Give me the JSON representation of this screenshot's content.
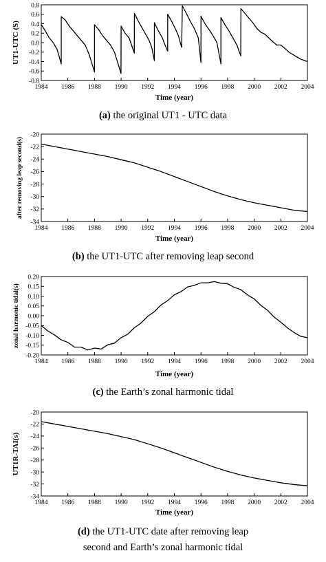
{
  "chart_data": [
    {
      "type": "line",
      "panel_label": "(a)",
      "caption": "the original UT1 - UTC data",
      "caption_line2": "",
      "ylabel": "UT1-UTC (S)",
      "xlabel": "Time (year)",
      "xlim": [
        1984,
        2004
      ],
      "ylim": [
        -0.8,
        0.8
      ],
      "xticks": [
        1984,
        1986,
        1988,
        1990,
        1992,
        1994,
        1996,
        1998,
        2000,
        2002,
        2004
      ],
      "yticks": [
        -0.8,
        -0.6,
        -0.4,
        -0.2,
        0.0,
        0.2,
        0.4,
        0.6,
        0.8
      ],
      "ytick_labels": [
        "-0.8",
        "-0.6",
        "-0.4",
        "-0.2",
        "0.0",
        "0.2",
        "0.4",
        "0.6",
        "0.8"
      ],
      "series": [
        {
          "points": [
            [
              1984.0,
              0.38
            ],
            [
              1984.3,
              0.25
            ],
            [
              1984.6,
              0.1
            ],
            [
              1984.9,
              0.0
            ],
            [
              1985.2,
              -0.15
            ],
            [
              1985.5,
              -0.45
            ],
            [
              1985.5,
              0.55
            ],
            [
              1985.8,
              0.48
            ],
            [
              1986.1,
              0.35
            ],
            [
              1986.4,
              0.25
            ],
            [
              1986.7,
              0.15
            ],
            [
              1987.0,
              0.05
            ],
            [
              1987.3,
              -0.05
            ],
            [
              1987.6,
              -0.25
            ],
            [
              1988.0,
              -0.62
            ],
            [
              1988.0,
              0.38
            ],
            [
              1988.3,
              0.28
            ],
            [
              1988.6,
              0.15
            ],
            [
              1988.9,
              0.05
            ],
            [
              1989.2,
              -0.05
            ],
            [
              1989.5,
              -0.2
            ],
            [
              1989.99,
              -0.65
            ],
            [
              1990.0,
              0.35
            ],
            [
              1990.3,
              0.2
            ],
            [
              1990.6,
              0.1
            ],
            [
              1990.99,
              -0.22
            ],
            [
              1991.0,
              0.62
            ],
            [
              1991.3,
              0.45
            ],
            [
              1991.6,
              0.3
            ],
            [
              1991.9,
              0.15
            ],
            [
              1992.1,
              0.05
            ],
            [
              1992.3,
              -0.1
            ],
            [
              1992.5,
              -0.38
            ],
            [
              1992.5,
              0.42
            ],
            [
              1992.8,
              0.25
            ],
            [
              1993.1,
              0.1
            ],
            [
              1993.3,
              -0.05
            ],
            [
              1993.5,
              -0.18
            ],
            [
              1993.5,
              0.6
            ],
            [
              1993.8,
              0.45
            ],
            [
              1994.1,
              0.28
            ],
            [
              1994.3,
              0.15
            ],
            [
              1994.5,
              -0.05
            ],
            [
              1994.55,
              -0.1
            ],
            [
              1994.6,
              0.78
            ],
            [
              1994.9,
              0.62
            ],
            [
              1995.2,
              0.45
            ],
            [
              1995.5,
              0.3
            ],
            [
              1995.8,
              0.1
            ],
            [
              1996.0,
              -0.42
            ],
            [
              1996.0,
              0.56
            ],
            [
              1996.3,
              0.4
            ],
            [
              1996.6,
              0.28
            ],
            [
              1996.9,
              0.15
            ],
            [
              1997.2,
              0.0
            ],
            [
              1997.5,
              -0.45
            ],
            [
              1997.5,
              0.53
            ],
            [
              1997.8,
              0.38
            ],
            [
              1998.1,
              0.25
            ],
            [
              1998.4,
              0.1
            ],
            [
              1998.7,
              -0.05
            ],
            [
              1998.99,
              -0.28
            ],
            [
              1999.0,
              0.72
            ],
            [
              1999.3,
              0.62
            ],
            [
              1999.6,
              0.52
            ],
            [
              1999.9,
              0.42
            ],
            [
              2000.2,
              0.3
            ],
            [
              2000.5,
              0.22
            ],
            [
              2000.8,
              0.18
            ],
            [
              2001.1,
              0.1
            ],
            [
              2001.4,
              0.02
            ],
            [
              2001.7,
              -0.05
            ],
            [
              2002.0,
              -0.05
            ],
            [
              2002.3,
              -0.12
            ],
            [
              2002.6,
              -0.2
            ],
            [
              2002.9,
              -0.25
            ],
            [
              2003.2,
              -0.3
            ],
            [
              2003.5,
              -0.35
            ],
            [
              2003.8,
              -0.38
            ],
            [
              2004.0,
              -0.4
            ]
          ]
        }
      ]
    },
    {
      "type": "line",
      "panel_label": "(b)",
      "caption": "the UT1-UTC after removing leap second",
      "caption_line2": "",
      "ylabel": "after removing leap second(s)",
      "xlabel": "Time (year)",
      "xlim": [
        1984,
        2004
      ],
      "ylim": [
        -34,
        -20
      ],
      "xticks": [
        1984,
        1986,
        1988,
        1990,
        1992,
        1994,
        1996,
        1998,
        2000,
        2002,
        2004
      ],
      "yticks": [
        -34,
        -32,
        -30,
        -28,
        -26,
        -24,
        -22,
        -20
      ],
      "ytick_labels": [
        "-34",
        "-32",
        "-30",
        "-28",
        "-26",
        "-24",
        "-22",
        "-20"
      ],
      "series": [
        {
          "points": [
            [
              1984,
              -21.6
            ],
            [
              1985,
              -22.0
            ],
            [
              1986,
              -22.4
            ],
            [
              1987,
              -22.8
            ],
            [
              1988,
              -23.2
            ],
            [
              1989,
              -23.6
            ],
            [
              1990,
              -24.1
            ],
            [
              1991,
              -24.6
            ],
            [
              1992,
              -25.3
            ],
            [
              1993,
              -26.0
            ],
            [
              1994,
              -26.8
            ],
            [
              1995,
              -27.6
            ],
            [
              1996,
              -28.4
            ],
            [
              1997,
              -29.2
            ],
            [
              1998,
              -29.9
            ],
            [
              1999,
              -30.5
            ],
            [
              2000,
              -31.0
            ],
            [
              2001,
              -31.4
            ],
            [
              2002,
              -31.8
            ],
            [
              2003,
              -32.2
            ],
            [
              2004,
              -32.4
            ]
          ]
        }
      ]
    },
    {
      "type": "line",
      "panel_label": "(c)",
      "caption": "the Earth’s zonal harmonic tidal",
      "caption_line2": "",
      "ylabel": "zonal harmonic tidal(s)",
      "xlabel": "Time (year)",
      "xlim": [
        1984,
        2004
      ],
      "ylim": [
        -0.2,
        0.2
      ],
      "xticks": [
        1984,
        1986,
        1988,
        1990,
        1992,
        1994,
        1996,
        1998,
        2000,
        2002,
        2004
      ],
      "yticks": [
        -0.2,
        -0.15,
        -0.1,
        -0.05,
        0.0,
        0.05,
        0.1,
        0.15,
        0.2
      ],
      "ytick_labels": [
        "-0.20",
        "-0.15",
        "-0.10",
        "-0.05",
        "0.00",
        "0.05",
        "0.10",
        "0.15",
        "0.20"
      ],
      "series": [
        {
          "points": [
            [
              1984.0,
              -0.05
            ],
            [
              1984.5,
              -0.078
            ],
            [
              1985.0,
              -0.098
            ],
            [
              1985.5,
              -0.123
            ],
            [
              1986.0,
              -0.136
            ],
            [
              1986.5,
              -0.16
            ],
            [
              1987.0,
              -0.16
            ],
            [
              1987.5,
              -0.175
            ],
            [
              1988.0,
              -0.165
            ],
            [
              1988.5,
              -0.17
            ],
            [
              1989.0,
              -0.148
            ],
            [
              1989.5,
              -0.14
            ],
            [
              1990.0,
              -0.112
            ],
            [
              1990.5,
              -0.094
            ],
            [
              1991.0,
              -0.061
            ],
            [
              1991.5,
              -0.037
            ],
            [
              1992.0,
              -0.003
            ],
            [
              1992.5,
              0.021
            ],
            [
              1993.0,
              0.055
            ],
            [
              1993.5,
              0.077
            ],
            [
              1994.0,
              0.107
            ],
            [
              1994.5,
              0.123
            ],
            [
              1995.0,
              0.147
            ],
            [
              1995.5,
              0.155
            ],
            [
              1996.0,
              0.168
            ],
            [
              1996.5,
              0.168
            ],
            [
              1997.0,
              0.174
            ],
            [
              1997.5,
              0.166
            ],
            [
              1998.0,
              0.163
            ],
            [
              1998.5,
              0.145
            ],
            [
              1999.0,
              0.133
            ],
            [
              1999.5,
              0.106
            ],
            [
              2000.0,
              0.086
            ],
            [
              2000.5,
              0.053
            ],
            [
              2001.0,
              0.028
            ],
            [
              2001.5,
              -0.007
            ],
            [
              2002.0,
              -0.033
            ],
            [
              2002.5,
              -0.062
            ],
            [
              2003.0,
              -0.086
            ],
            [
              2003.5,
              -0.105
            ],
            [
              2004.0,
              -0.112
            ]
          ]
        }
      ]
    },
    {
      "type": "line",
      "panel_label": "(d)",
      "caption": "the UT1-UTC date after removing leap",
      "caption_line2": "second and Earth’s zonal harmonic tidal",
      "ylabel": "UT1R-TAI(s)",
      "xlabel": "Time (year)",
      "xlim": [
        1984,
        2004
      ],
      "ylim": [
        -34,
        -20
      ],
      "xticks": [
        1984,
        1986,
        1988,
        1990,
        1992,
        1994,
        1996,
        1998,
        2000,
        2002,
        2004
      ],
      "yticks": [
        -34,
        -32,
        -30,
        -28,
        -26,
        -24,
        -22,
        -20
      ],
      "ytick_labels": [
        "-34",
        "-32",
        "-30",
        "-28",
        "-26",
        "-24",
        "-22",
        "-20"
      ],
      "series": [
        {
          "points": [
            [
              1984,
              -21.6
            ],
            [
              1985,
              -22.0
            ],
            [
              1986,
              -22.4
            ],
            [
              1987,
              -22.8
            ],
            [
              1988,
              -23.2
            ],
            [
              1989,
              -23.6
            ],
            [
              1990,
              -24.1
            ],
            [
              1991,
              -24.6
            ],
            [
              1992,
              -25.3
            ],
            [
              1993,
              -26.0
            ],
            [
              1994,
              -26.8
            ],
            [
              1995,
              -27.6
            ],
            [
              1996,
              -28.4
            ],
            [
              1997,
              -29.2
            ],
            [
              1998,
              -29.9
            ],
            [
              1999,
              -30.5
            ],
            [
              2000,
              -31.0
            ],
            [
              2001,
              -31.4
            ],
            [
              2002,
              -31.8
            ],
            [
              2003,
              -32.1
            ],
            [
              2004,
              -32.3
            ]
          ]
        }
      ]
    }
  ]
}
